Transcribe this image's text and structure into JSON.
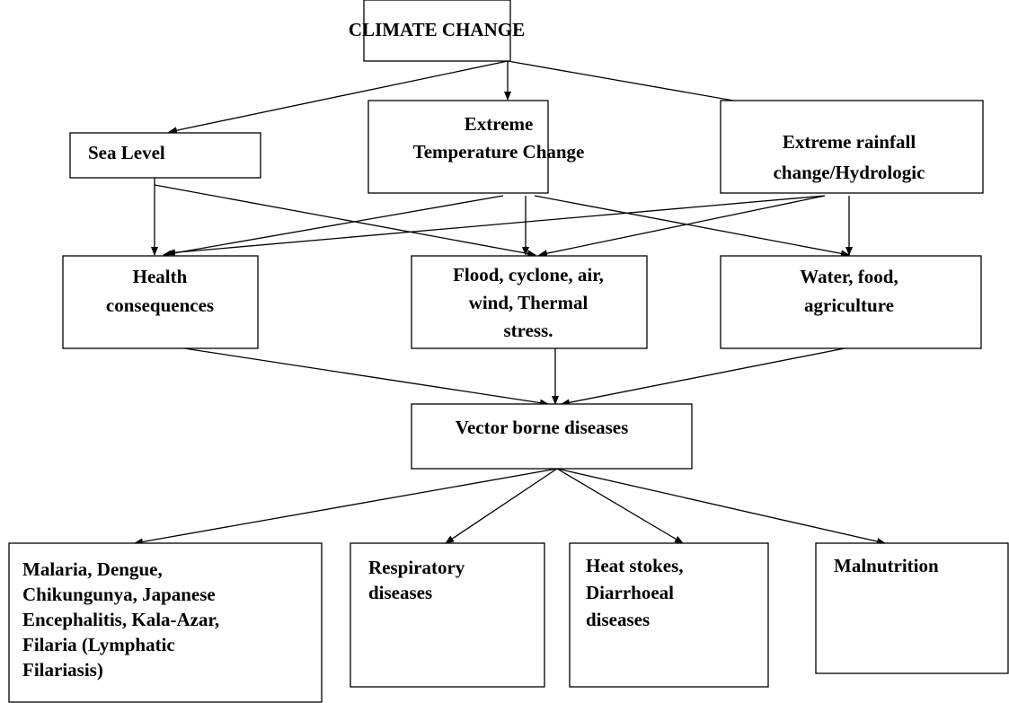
{
  "nodes": [
    {
      "lines": [
        "CLIMATE CHANGE"
      ]
    },
    {
      "lines": [
        "Sea Level"
      ]
    },
    {
      "lines": [
        "Extreme",
        "Temperature Change"
      ]
    },
    {
      "lines": [
        "Extreme rainfall",
        "change/Hydrologic"
      ]
    },
    {
      "lines": [
        "Health",
        "consequences"
      ]
    },
    {
      "lines": [
        "Flood, cyclone, air,",
        "wind, Thermal",
        "stress."
      ]
    },
    {
      "lines": [
        "Water, food,",
        "agriculture"
      ]
    },
    {
      "lines": [
        "Vector borne diseases"
      ]
    },
    {
      "lines": [
        "Malaria, Dengue,",
        "Chikungunya,  Japanese",
        "Encephalitis, Kala-Azar,",
        "Filaria (Lymphatic",
        "Filariasis)"
      ]
    },
    {
      "lines": [
        "Respiratory",
        "diseases"
      ]
    },
    {
      "lines": [
        "Heat stokes,",
        "Diarrhoeal",
        "diseases"
      ]
    },
    {
      "lines": [
        "Malnutrition"
      ]
    }
  ]
}
